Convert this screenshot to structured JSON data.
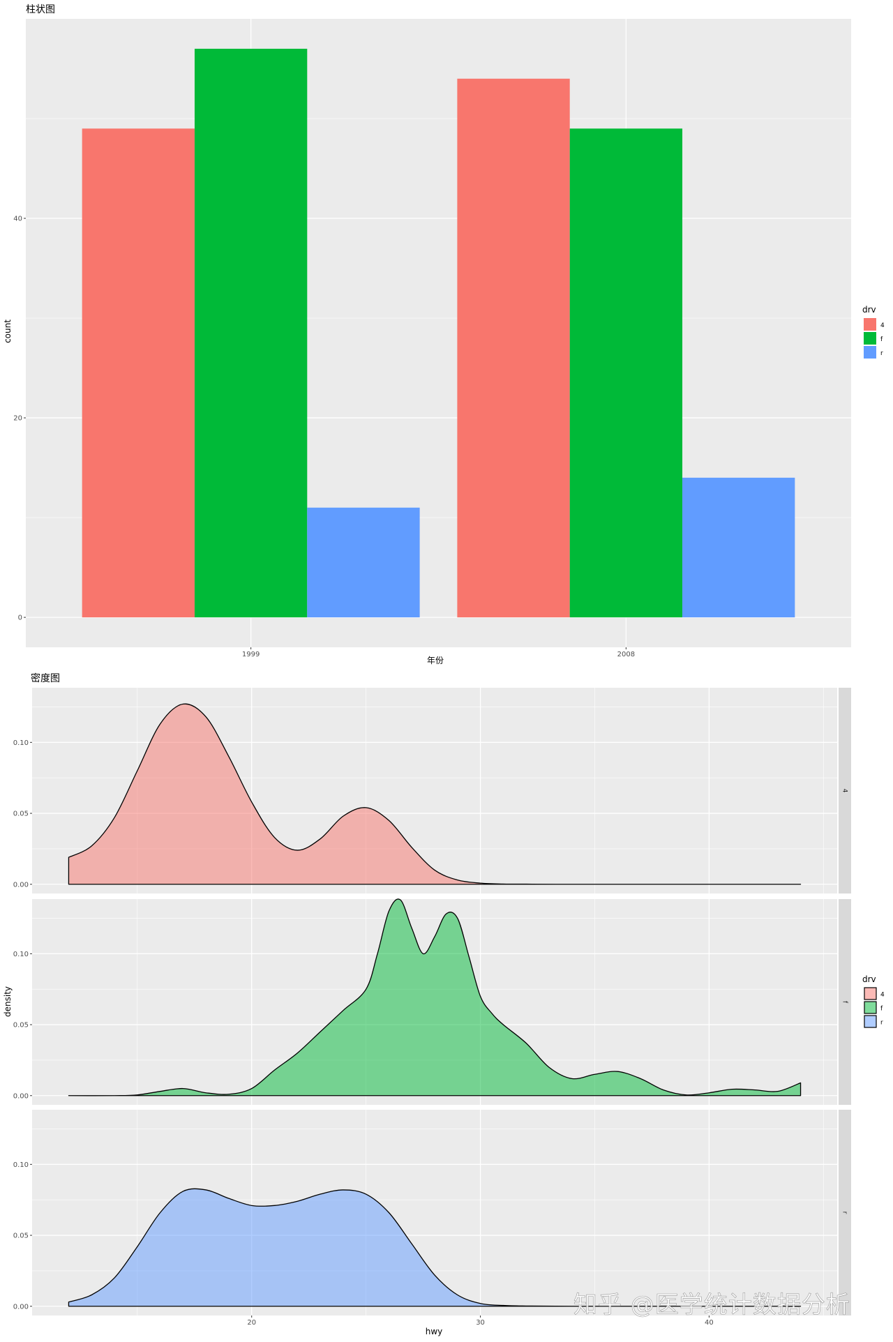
{
  "watermark": "知乎 @医学统计数据分析",
  "colors": {
    "4": "#F8766D",
    "f": "#00BA38",
    "r": "#619CFF",
    "panel": "#EBEBEB",
    "grid": "#FFFFFF",
    "strip": "#D9D9D9"
  },
  "chart_data": [
    {
      "type": "bar",
      "title": "柱状图",
      "xlabel": "年份",
      "ylabel": "count",
      "categories": [
        "1999",
        "2008"
      ],
      "series": [
        {
          "name": "4",
          "values": [
            49,
            54
          ]
        },
        {
          "name": "f",
          "values": [
            57,
            49
          ]
        },
        {
          "name": "r",
          "values": [
            11,
            14
          ]
        }
      ],
      "ylim": [
        -3,
        60
      ],
      "yticks": [
        0,
        20,
        40
      ],
      "ytick_labels": [
        "0",
        "20",
        "40"
      ],
      "legend": {
        "title": "drv",
        "entries": [
          "4",
          "f",
          "r"
        ],
        "position": "right"
      },
      "grid": true
    },
    {
      "type": "area",
      "title": "密度图",
      "xlabel": "hwy",
      "ylabel": "density",
      "xlim": [
        10.4,
        45.6
      ],
      "xticks": [
        20,
        30,
        40
      ],
      "xtick_labels": [
        "20",
        "30",
        "40"
      ],
      "ylim": [
        -0.0065,
        0.1385
      ],
      "yticks": [
        0,
        0.05,
        0.1
      ],
      "ytick_labels": [
        "0.00",
        "0.05",
        "0.10"
      ],
      "legend": {
        "title": "drv",
        "entries": [
          "4",
          "f",
          "r"
        ],
        "position": "right"
      },
      "facets": [
        {
          "strip": "4",
          "x": [
            12,
            13,
            14,
            15,
            16,
            17,
            18,
            19,
            20,
            21,
            22,
            23,
            24,
            25,
            26,
            27,
            28,
            29,
            30,
            31,
            32,
            34,
            36,
            38,
            40,
            42,
            44
          ],
          "y": [
            0.019,
            0.027,
            0.047,
            0.08,
            0.113,
            0.127,
            0.118,
            0.09,
            0.058,
            0.033,
            0.024,
            0.032,
            0.048,
            0.054,
            0.045,
            0.026,
            0.01,
            0.003,
            0.0008,
            0.0002,
            0.0001,
            0,
            0,
            0,
            0,
            0,
            0
          ]
        },
        {
          "strip": "f",
          "x": [
            12,
            14,
            15,
            16,
            17,
            18,
            19,
            20,
            21,
            22,
            23,
            24,
            25,
            25.5,
            26,
            26.5,
            27,
            27.5,
            28,
            28.5,
            29,
            29.5,
            30,
            30.5,
            31,
            32,
            33,
            34,
            35,
            36,
            37,
            38,
            39,
            40,
            41,
            42,
            43,
            44
          ],
          "y": [
            0,
            0,
            0.0005,
            0.003,
            0.005,
            0.002,
            0.001,
            0.005,
            0.018,
            0.03,
            0.045,
            0.06,
            0.075,
            0.1,
            0.13,
            0.138,
            0.118,
            0.1,
            0.112,
            0.128,
            0.125,
            0.098,
            0.07,
            0.058,
            0.05,
            0.037,
            0.02,
            0.012,
            0.015,
            0.017,
            0.012,
            0.004,
            0.0005,
            0.002,
            0.0045,
            0.004,
            0.003,
            0.009
          ]
        },
        {
          "strip": "r",
          "x": [
            12,
            13,
            14,
            15,
            16,
            17,
            18,
            19,
            20,
            21,
            22,
            23,
            24,
            25,
            26,
            27,
            28,
            29,
            30,
            31,
            32,
            34,
            36,
            38,
            40,
            42,
            44
          ],
          "y": [
            0.003,
            0.008,
            0.02,
            0.042,
            0.066,
            0.081,
            0.082,
            0.076,
            0.071,
            0.071,
            0.074,
            0.079,
            0.082,
            0.079,
            0.066,
            0.044,
            0.022,
            0.008,
            0.002,
            0.0006,
            0.0002,
            0,
            0,
            0,
            0,
            0,
            0
          ]
        }
      ],
      "grid": true
    }
  ]
}
